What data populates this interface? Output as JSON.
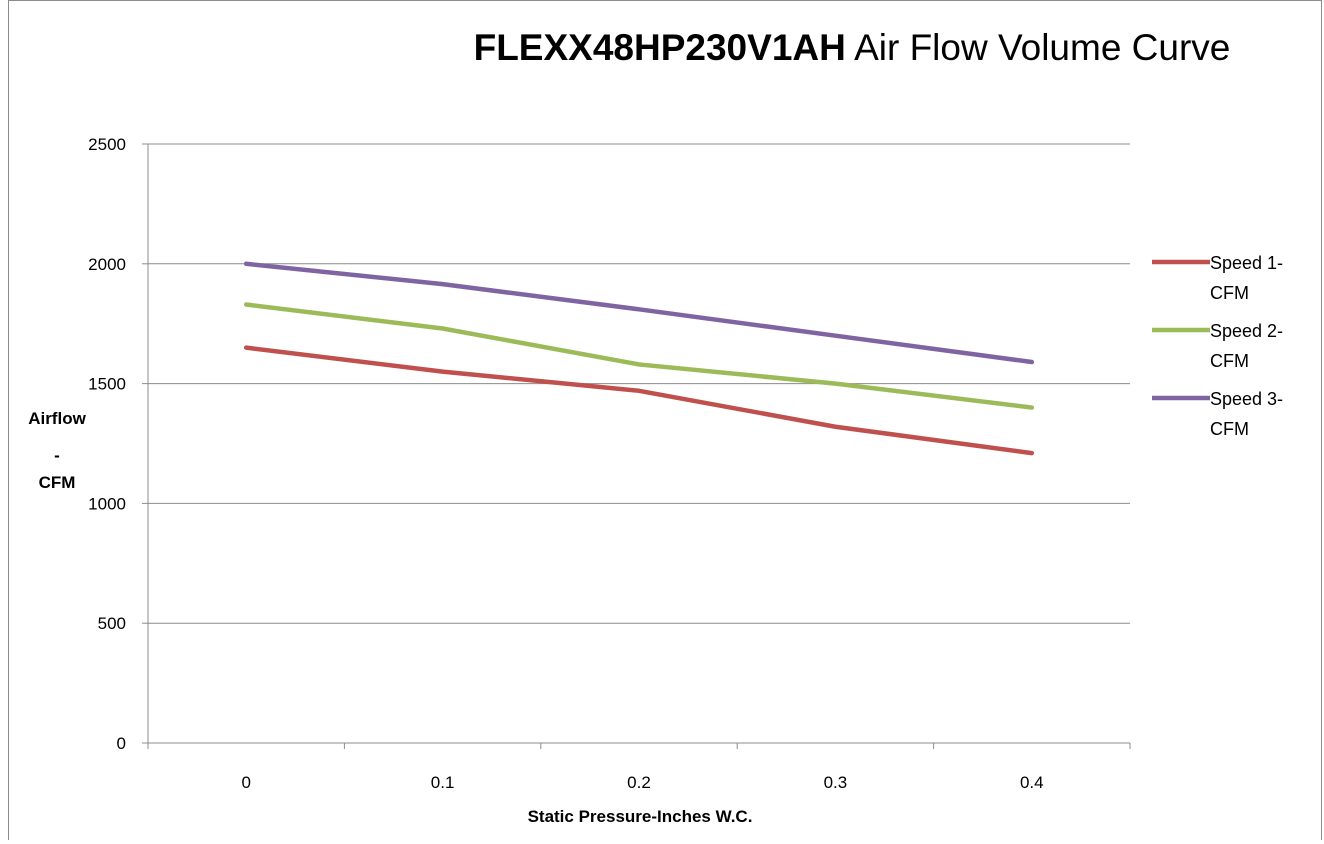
{
  "chart_data": {
    "type": "line",
    "title_bold": "FLEXX48HP230V1AH",
    "title_rest": " Air Flow Volume Curve",
    "xlabel": "Static Pressure-Inches W.C.",
    "ylabel_lines": [
      "Airflow",
      "-",
      "CFM"
    ],
    "categories": [
      "0",
      "0.1",
      "0.2",
      "0.3",
      "0.4"
    ],
    "ylim": [
      0,
      2500
    ],
    "yticks": [
      0,
      500,
      1000,
      1500,
      2000,
      2500
    ],
    "ytick_labels": [
      "0",
      "500",
      "1000",
      "1500",
      "2000",
      "2500"
    ],
    "grid": true,
    "legend_position": "right",
    "series": [
      {
        "name_lines": [
          "Speed 1-",
          "CFM"
        ],
        "color": "#c0504d",
        "values": [
          1650,
          1550,
          1470,
          1320,
          1210
        ]
      },
      {
        "name_lines": [
          "Speed 2-",
          "CFM"
        ],
        "color": "#9bbb59",
        "values": [
          1830,
          1730,
          1580,
          1500,
          1400
        ]
      },
      {
        "name_lines": [
          "Speed 3-",
          "CFM"
        ],
        "color": "#8064a2",
        "values": [
          2000,
          1915,
          1810,
          1700,
          1590
        ]
      }
    ]
  }
}
